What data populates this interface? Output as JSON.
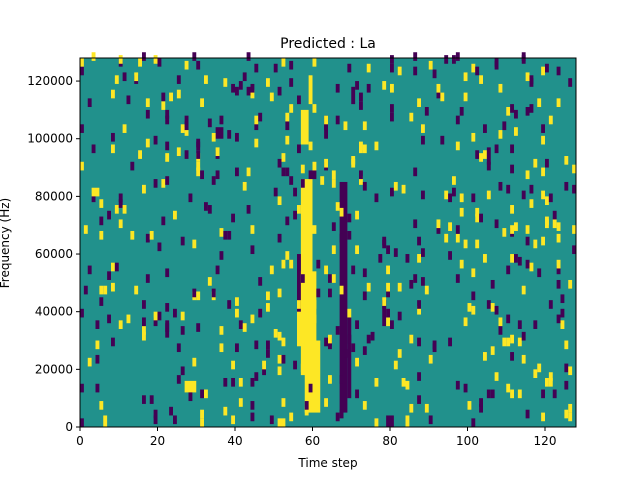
{
  "chart_data": {
    "type": "heatmap",
    "title": "Predicted : La",
    "xlabel": "Time step",
    "ylabel": "Frequency (Hz)",
    "xlim": [
      0,
      128
    ],
    "ylim": [
      0,
      128000
    ],
    "x_ticks": [
      0,
      20,
      40,
      60,
      80,
      100,
      120
    ],
    "y_ticks": [
      0,
      20000,
      40000,
      60000,
      80000,
      100000,
      120000
    ],
    "x_tick_labels": [
      "0",
      "20",
      "40",
      "60",
      "80",
      "100",
      "120"
    ],
    "y_tick_labels": [
      "0",
      "20000",
      "40000",
      "60000",
      "80000",
      "100000",
      "120000"
    ],
    "grid": false,
    "colors": {
      "background": "#21918c",
      "low": "#440154",
      "high": "#fde725"
    },
    "yellow_blocks": [
      {
        "x": [
          57,
          60
        ],
        "y": [
          18000,
          86000
        ]
      },
      {
        "x": [
          56,
          61
        ],
        "y": [
          28000,
          54000
        ]
      },
      {
        "x": [
          58,
          62
        ],
        "y": [
          5000,
          30000
        ]
      },
      {
        "x": [
          57,
          59
        ],
        "y": [
          98000,
          110000
        ]
      },
      {
        "x": [
          59,
          60
        ],
        "y": [
          112000,
          122000
        ]
      },
      {
        "x": [
          27,
          30
        ],
        "y": [
          12000,
          16000
        ]
      },
      {
        "x": [
          84,
          85
        ],
        "y": [
          0,
          4000
        ]
      },
      {
        "x": [
          6,
          7
        ],
        "y": [
          0,
          4000
        ]
      }
    ],
    "purple_blocks": [
      {
        "x": [
          67,
          69
        ],
        "y": [
          5000,
          85000
        ]
      },
      {
        "x": [
          69,
          70
        ],
        "y": [
          10000,
          38000
        ]
      },
      {
        "x": [
          78,
          79
        ],
        "y": [
          35000,
          44000
        ]
      },
      {
        "x": [
          79,
          81
        ],
        "y": [
          0,
          4000
        ]
      },
      {
        "x": [
          56,
          57
        ],
        "y": [
          40000,
          60000
        ]
      },
      {
        "x": [
          63,
          64
        ],
        "y": [
          100000,
          108000
        ]
      },
      {
        "x": [
          35,
          37
        ],
        "y": [
          100000,
          104000
        ]
      },
      {
        "x": [
          70,
          71
        ],
        "y": [
          112000,
          118000
        ]
      }
    ]
  }
}
